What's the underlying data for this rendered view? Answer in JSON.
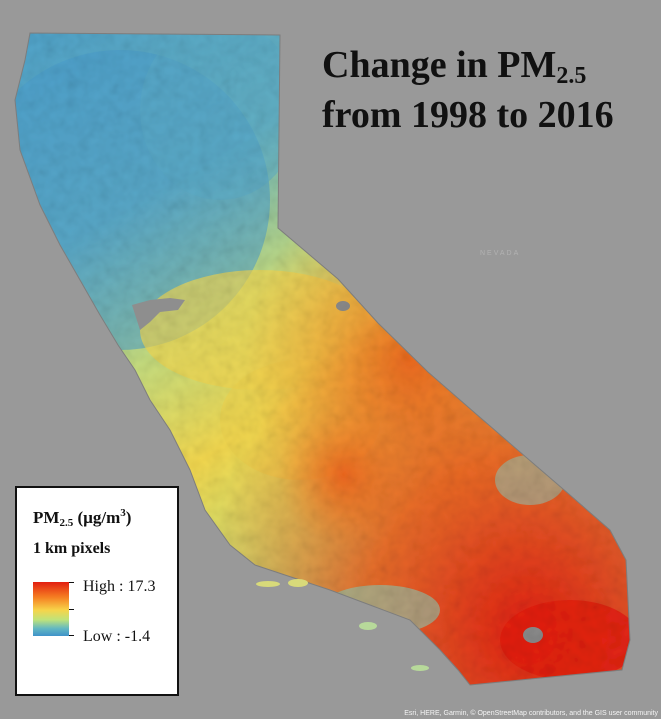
{
  "map": {
    "title_line1": "Change in PM",
    "title_sub": "2.5",
    "title_line2": "from 1998 to 2016",
    "colors": {
      "background": "#999999",
      "high": "#e21f10",
      "mid": "#f7d44a",
      "low": "#3f93c9"
    }
  },
  "legend": {
    "title_main": "PM",
    "title_sub": "2.5",
    "title_unit_pre": " (µg/m",
    "title_unit_sup": "3",
    "title_unit_post": ")",
    "subtitle": "1 km pixels",
    "high_label": "High : 17.3",
    "low_label": "Low : -1.4"
  },
  "attribution": "Esri, HERE, Garmin, © OpenStreetMap contributors, and the GIS user community",
  "faint_label": "NEVADA"
}
